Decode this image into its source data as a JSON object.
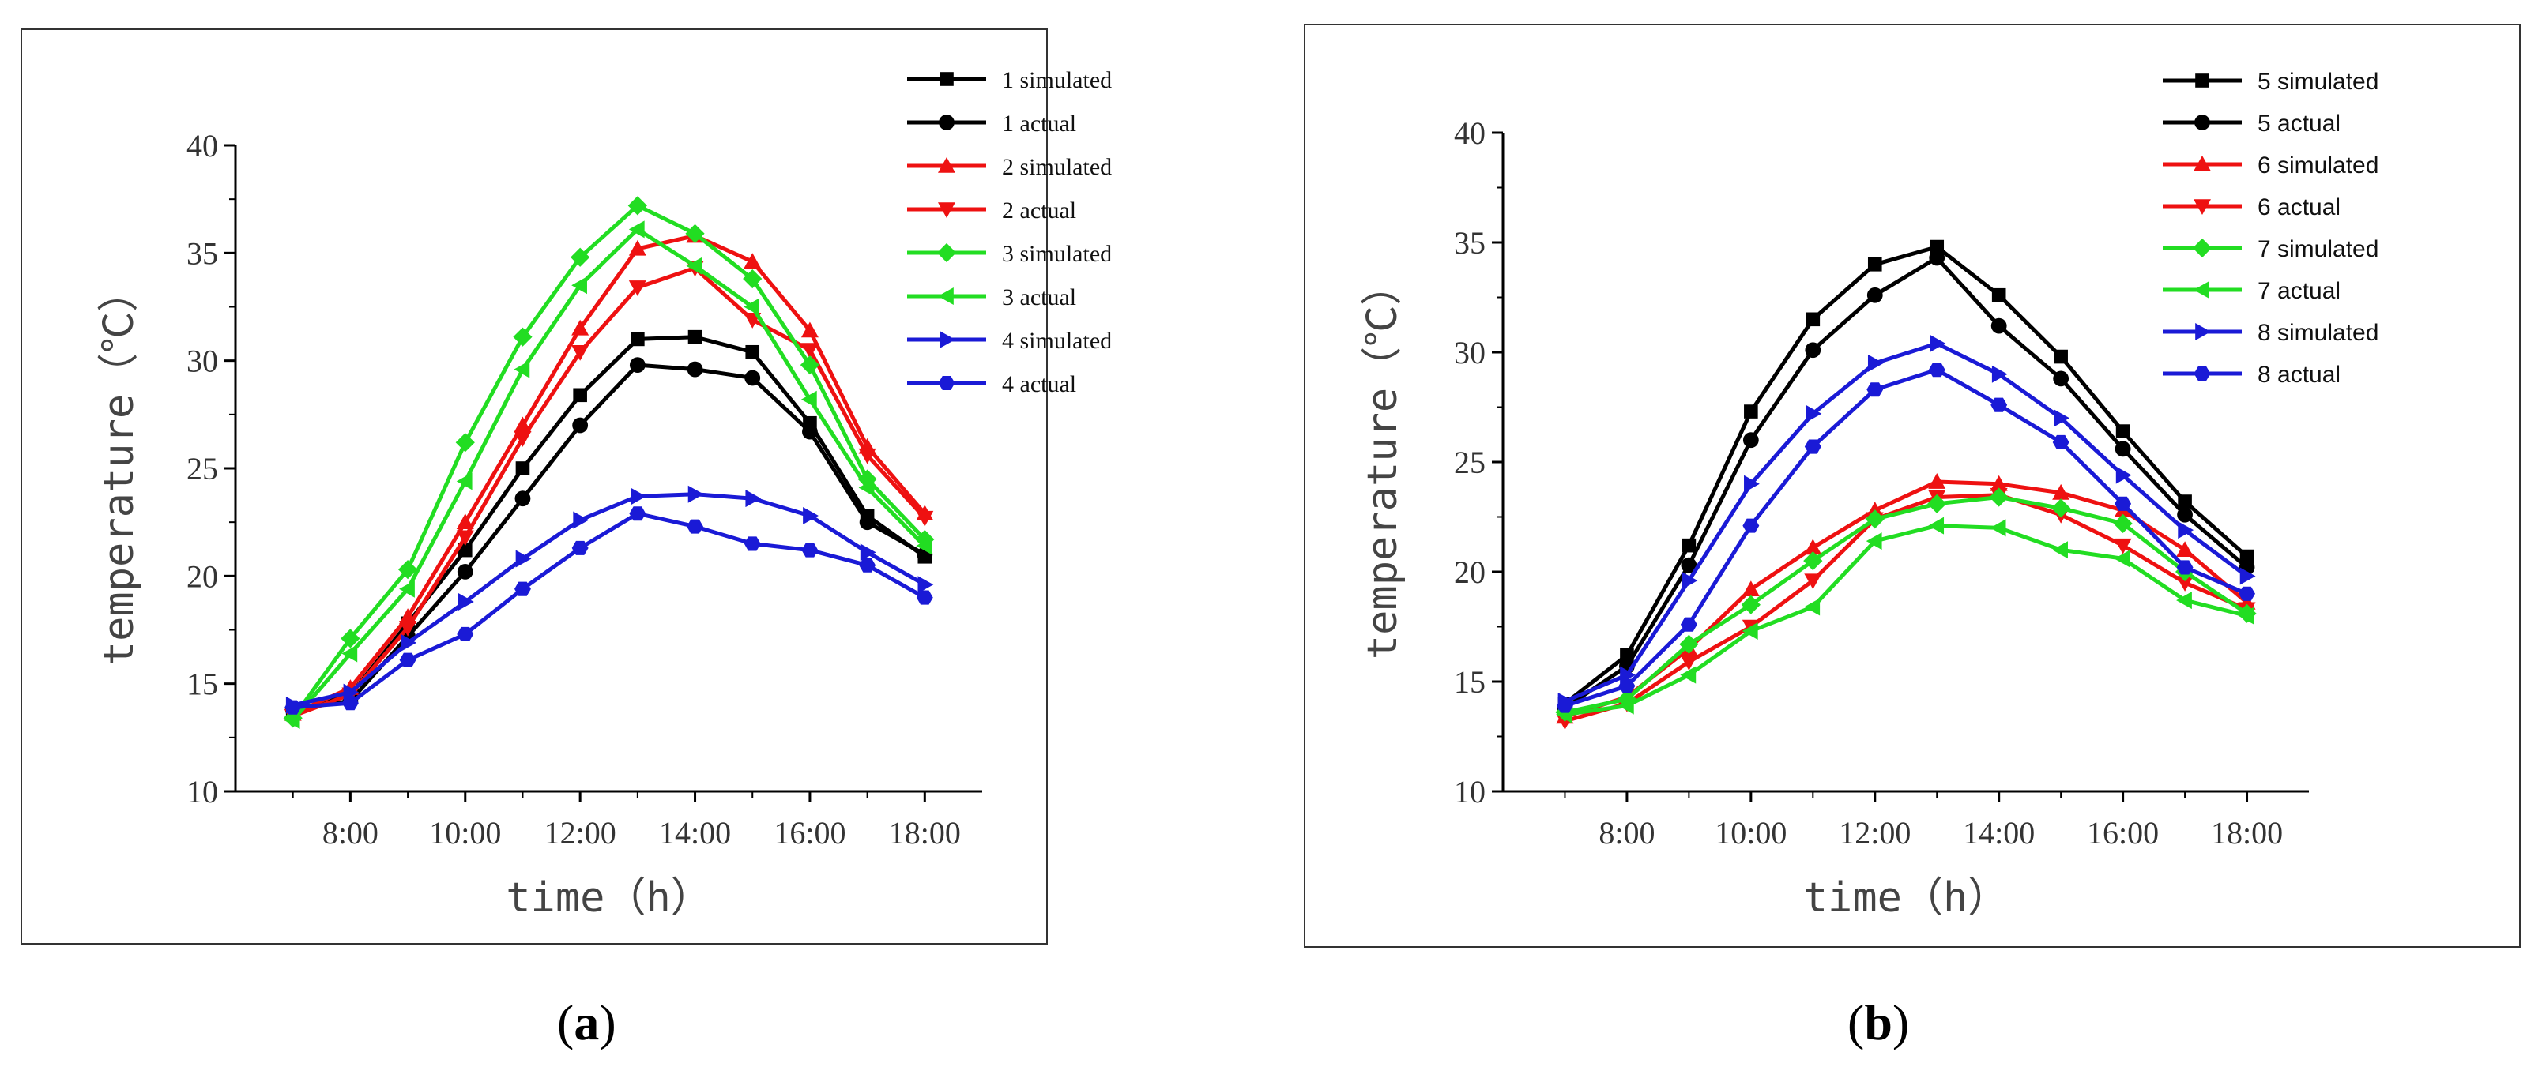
{
  "chart_data": [
    {
      "type": "line",
      "panel_label": "a",
      "xlabel": "time（h）",
      "ylabel": "temperature（℃）",
      "x": [
        7,
        8,
        9,
        10,
        11,
        12,
        13,
        14,
        15,
        16,
        17,
        18
      ],
      "xticks": [
        8,
        10,
        12,
        14,
        16,
        18
      ],
      "xtick_labels": [
        "8:00",
        "10:00",
        "12:00",
        "14:00",
        "16:00",
        "18:00"
      ],
      "xlim": [
        6,
        19
      ],
      "ylim": [
        10,
        40
      ],
      "yticks": [
        10,
        15,
        20,
        25,
        30,
        35,
        40
      ],
      "legend_position": "top-right",
      "series": [
        {
          "name": "1 simulated",
          "color": "#000000",
          "marker": "square",
          "values": [
            13.7,
            14.5,
            17.8,
            21.2,
            25.0,
            28.4,
            31.0,
            31.1,
            30.4,
            27.1,
            22.8,
            20.9
          ]
        },
        {
          "name": "1 actual",
          "color": "#000000",
          "marker": "circle",
          "values": [
            13.8,
            14.2,
            17.2,
            20.2,
            23.6,
            27.0,
            29.8,
            29.6,
            29.2,
            26.7,
            22.5,
            21.0
          ]
        },
        {
          "name": "2 simulated",
          "color": "#ee1111",
          "marker": "triangle-up",
          "values": [
            13.6,
            14.8,
            18.1,
            22.5,
            27.0,
            31.5,
            35.2,
            35.8,
            34.6,
            31.4,
            26.0,
            22.9
          ]
        },
        {
          "name": "2 actual",
          "color": "#ee1111",
          "marker": "triangle-down",
          "values": [
            13.5,
            14.5,
            17.6,
            21.8,
            26.4,
            30.4,
            33.4,
            34.3,
            31.9,
            30.5,
            25.6,
            22.7
          ]
        },
        {
          "name": "3 simulated",
          "color": "#22dd22",
          "marker": "diamond",
          "values": [
            13.4,
            17.1,
            20.3,
            26.2,
            31.1,
            34.8,
            37.2,
            35.9,
            33.8,
            29.8,
            24.5,
            21.7
          ]
        },
        {
          "name": "3 actual",
          "color": "#22dd22",
          "marker": "triangle-left",
          "values": [
            13.3,
            16.4,
            19.4,
            24.4,
            29.6,
            33.5,
            36.1,
            34.4,
            32.5,
            28.2,
            24.1,
            21.4
          ]
        },
        {
          "name": "4 simulated",
          "color": "#1a1ad6",
          "marker": "triangle-right",
          "values": [
            14.0,
            14.6,
            16.9,
            18.8,
            20.8,
            22.6,
            23.7,
            23.8,
            23.6,
            22.8,
            21.1,
            19.6
          ]
        },
        {
          "name": "4 actual",
          "color": "#1a1ad6",
          "marker": "hexagon",
          "values": [
            13.9,
            14.1,
            16.1,
            17.3,
            19.4,
            21.3,
            22.9,
            22.3,
            21.5,
            21.2,
            20.5,
            19.0
          ]
        }
      ]
    },
    {
      "type": "line",
      "panel_label": "b",
      "xlabel": "time（h）",
      "ylabel": "temperature（℃）",
      "x": [
        7,
        8,
        9,
        10,
        11,
        12,
        13,
        14,
        15,
        16,
        17,
        18
      ],
      "xticks": [
        8,
        10,
        12,
        14,
        16,
        18
      ],
      "xtick_labels": [
        "8:00",
        "10:00",
        "12:00",
        "14:00",
        "16:00",
        "18:00"
      ],
      "xlim": [
        6,
        19
      ],
      "ylim": [
        10,
        40
      ],
      "yticks": [
        10,
        15,
        20,
        25,
        30,
        35,
        40
      ],
      "legend_position": "top-right",
      "series": [
        {
          "name": "5 simulated",
          "color": "#000000",
          "marker": "square",
          "values": [
            14.0,
            16.2,
            21.2,
            27.3,
            31.5,
            34.0,
            34.8,
            32.6,
            29.8,
            26.4,
            23.2,
            20.7
          ]
        },
        {
          "name": "5 actual",
          "color": "#000000",
          "marker": "circle",
          "values": [
            13.8,
            15.7,
            20.3,
            26.0,
            30.1,
            32.6,
            34.3,
            31.2,
            28.8,
            25.6,
            22.6,
            20.2
          ]
        },
        {
          "name": "6 simulated",
          "color": "#ee1111",
          "marker": "triangle-up",
          "values": [
            13.4,
            14.3,
            16.5,
            19.2,
            21.1,
            22.8,
            24.1,
            24.0,
            23.6,
            22.8,
            21.0,
            18.6
          ]
        },
        {
          "name": "6 actual",
          "color": "#ee1111",
          "marker": "triangle-down",
          "values": [
            13.2,
            14.0,
            15.9,
            17.5,
            19.6,
            22.4,
            23.4,
            23.5,
            22.6,
            21.2,
            19.5,
            18.3
          ]
        },
        {
          "name": "7 simulated",
          "color": "#22dd22",
          "marker": "diamond",
          "values": [
            13.6,
            14.2,
            16.7,
            18.5,
            20.5,
            22.4,
            23.1,
            23.4,
            22.9,
            22.2,
            20.0,
            18.1
          ]
        },
        {
          "name": "7 actual",
          "color": "#22dd22",
          "marker": "triangle-left",
          "values": [
            13.5,
            13.9,
            15.3,
            17.3,
            18.4,
            21.4,
            22.1,
            22.0,
            21.0,
            20.6,
            18.7,
            18.0
          ]
        },
        {
          "name": "8 simulated",
          "color": "#1a1ad6",
          "marker": "triangle-right",
          "values": [
            14.1,
            15.3,
            19.6,
            24.0,
            27.2,
            29.5,
            30.4,
            29.0,
            27.0,
            24.4,
            21.9,
            19.8
          ]
        },
        {
          "name": "8 actual",
          "color": "#1a1ad6",
          "marker": "hexagon",
          "values": [
            13.9,
            14.8,
            17.6,
            22.1,
            25.7,
            28.3,
            29.2,
            27.6,
            25.9,
            23.1,
            20.2,
            19.0
          ]
        }
      ]
    }
  ],
  "captions": [
    {
      "open": "(",
      "label": "a",
      "close": ")"
    },
    {
      "open": "(",
      "label": "b",
      "close": ")"
    }
  ]
}
